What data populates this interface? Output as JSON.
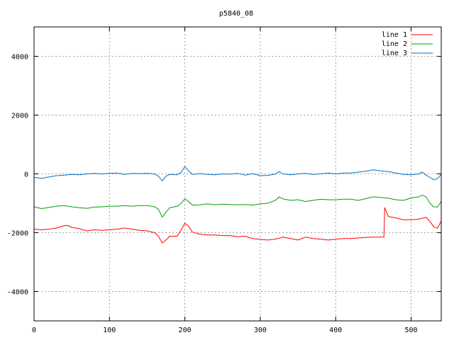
{
  "chart_data": {
    "type": "line",
    "title": "p5840_08",
    "xlabel": "",
    "ylabel": "",
    "xlim": [
      0,
      540
    ],
    "ylim": [
      -5000,
      5000
    ],
    "x_ticks": [
      0,
      100,
      200,
      300,
      400,
      500
    ],
    "y_ticks": [
      -4000,
      -2000,
      0,
      2000,
      4000
    ],
    "grid": true,
    "legend_position": "top-right",
    "series": [
      {
        "name": "line 1",
        "color": "#ff0000",
        "points": [
          [
            0,
            -1880
          ],
          [
            10,
            -1900
          ],
          [
            20,
            -1880
          ],
          [
            30,
            -1840
          ],
          [
            40,
            -1760
          ],
          [
            45,
            -1760
          ],
          [
            50,
            -1820
          ],
          [
            60,
            -1860
          ],
          [
            70,
            -1940
          ],
          [
            80,
            -1900
          ],
          [
            90,
            -1920
          ],
          [
            100,
            -1900
          ],
          [
            110,
            -1880
          ],
          [
            120,
            -1840
          ],
          [
            130,
            -1880
          ],
          [
            140,
            -1920
          ],
          [
            150,
            -1940
          ],
          [
            160,
            -2000
          ],
          [
            165,
            -2120
          ],
          [
            170,
            -2350
          ],
          [
            175,
            -2250
          ],
          [
            180,
            -2120
          ],
          [
            190,
            -2120
          ],
          [
            195,
            -1900
          ],
          [
            200,
            -1680
          ],
          [
            205,
            -1780
          ],
          [
            210,
            -1980
          ],
          [
            220,
            -2050
          ],
          [
            230,
            -2080
          ],
          [
            240,
            -2080
          ],
          [
            250,
            -2100
          ],
          [
            260,
            -2100
          ],
          [
            270,
            -2140
          ],
          [
            280,
            -2120
          ],
          [
            290,
            -2200
          ],
          [
            300,
            -2230
          ],
          [
            310,
            -2250
          ],
          [
            320,
            -2220
          ],
          [
            330,
            -2150
          ],
          [
            340,
            -2200
          ],
          [
            350,
            -2250
          ],
          [
            360,
            -2150
          ],
          [
            370,
            -2200
          ],
          [
            380,
            -2220
          ],
          [
            390,
            -2250
          ],
          [
            400,
            -2220
          ],
          [
            410,
            -2200
          ],
          [
            420,
            -2200
          ],
          [
            430,
            -2180
          ],
          [
            440,
            -2160
          ],
          [
            450,
            -2150
          ],
          [
            460,
            -2150
          ],
          [
            464,
            -2150
          ],
          [
            465,
            -1150
          ],
          [
            470,
            -1450
          ],
          [
            480,
            -1500
          ],
          [
            490,
            -1560
          ],
          [
            500,
            -1560
          ],
          [
            510,
            -1540
          ],
          [
            520,
            -1480
          ],
          [
            525,
            -1620
          ],
          [
            530,
            -1800
          ],
          [
            535,
            -1850
          ],
          [
            540,
            -1600
          ]
        ]
      },
      {
        "name": "line 2",
        "color": "#00a000",
        "points": [
          [
            0,
            -1120
          ],
          [
            10,
            -1180
          ],
          [
            20,
            -1140
          ],
          [
            30,
            -1100
          ],
          [
            40,
            -1080
          ],
          [
            50,
            -1120
          ],
          [
            60,
            -1150
          ],
          [
            70,
            -1170
          ],
          [
            80,
            -1130
          ],
          [
            90,
            -1120
          ],
          [
            100,
            -1100
          ],
          [
            110,
            -1100
          ],
          [
            120,
            -1080
          ],
          [
            130,
            -1100
          ],
          [
            140,
            -1080
          ],
          [
            150,
            -1080
          ],
          [
            160,
            -1120
          ],
          [
            165,
            -1200
          ],
          [
            170,
            -1470
          ],
          [
            175,
            -1300
          ],
          [
            180,
            -1150
          ],
          [
            190,
            -1100
          ],
          [
            195,
            -1000
          ],
          [
            200,
            -850
          ],
          [
            205,
            -940
          ],
          [
            210,
            -1060
          ],
          [
            220,
            -1050
          ],
          [
            230,
            -1020
          ],
          [
            240,
            -1050
          ],
          [
            250,
            -1030
          ],
          [
            260,
            -1040
          ],
          [
            270,
            -1050
          ],
          [
            280,
            -1040
          ],
          [
            290,
            -1060
          ],
          [
            300,
            -1020
          ],
          [
            310,
            -1000
          ],
          [
            320,
            -900
          ],
          [
            325,
            -780
          ],
          [
            330,
            -850
          ],
          [
            340,
            -900
          ],
          [
            350,
            -880
          ],
          [
            360,
            -940
          ],
          [
            370,
            -900
          ],
          [
            380,
            -860
          ],
          [
            390,
            -880
          ],
          [
            400,
            -880
          ],
          [
            410,
            -860
          ],
          [
            420,
            -860
          ],
          [
            430,
            -900
          ],
          [
            440,
            -840
          ],
          [
            450,
            -780
          ],
          [
            460,
            -800
          ],
          [
            470,
            -830
          ],
          [
            480,
            -880
          ],
          [
            490,
            -900
          ],
          [
            500,
            -820
          ],
          [
            510,
            -780
          ],
          [
            515,
            -720
          ],
          [
            520,
            -780
          ],
          [
            525,
            -1000
          ],
          [
            530,
            -1120
          ],
          [
            535,
            -1130
          ],
          [
            540,
            -930
          ]
        ]
      },
      {
        "name": "line 3",
        "color": "#0070c0",
        "points": [
          [
            0,
            -120
          ],
          [
            10,
            -150
          ],
          [
            20,
            -100
          ],
          [
            30,
            -60
          ],
          [
            40,
            -40
          ],
          [
            50,
            -20
          ],
          [
            60,
            -30
          ],
          [
            70,
            0
          ],
          [
            80,
            20
          ],
          [
            90,
            0
          ],
          [
            100,
            20
          ],
          [
            110,
            30
          ],
          [
            120,
            -20
          ],
          [
            130,
            20
          ],
          [
            140,
            10
          ],
          [
            150,
            20
          ],
          [
            160,
            0
          ],
          [
            165,
            -80
          ],
          [
            170,
            -240
          ],
          [
            175,
            -80
          ],
          [
            180,
            -20
          ],
          [
            190,
            -30
          ],
          [
            195,
            50
          ],
          [
            200,
            250
          ],
          [
            205,
            100
          ],
          [
            210,
            -20
          ],
          [
            220,
            10
          ],
          [
            230,
            -20
          ],
          [
            240,
            -30
          ],
          [
            250,
            0
          ],
          [
            260,
            -10
          ],
          [
            270,
            20
          ],
          [
            280,
            -40
          ],
          [
            290,
            10
          ],
          [
            300,
            -60
          ],
          [
            310,
            -50
          ],
          [
            320,
            -10
          ],
          [
            325,
            80
          ],
          [
            330,
            0
          ],
          [
            340,
            -30
          ],
          [
            350,
            0
          ],
          [
            360,
            20
          ],
          [
            370,
            -20
          ],
          [
            380,
            0
          ],
          [
            390,
            30
          ],
          [
            400,
            0
          ],
          [
            410,
            30
          ],
          [
            420,
            30
          ],
          [
            430,
            60
          ],
          [
            440,
            90
          ],
          [
            450,
            140
          ],
          [
            460,
            100
          ],
          [
            470,
            80
          ],
          [
            480,
            30
          ],
          [
            490,
            -20
          ],
          [
            500,
            -30
          ],
          [
            510,
            0
          ],
          [
            515,
            60
          ],
          [
            520,
            -40
          ],
          [
            525,
            -120
          ],
          [
            530,
            -200
          ],
          [
            535,
            -160
          ],
          [
            540,
            -20
          ]
        ]
      }
    ]
  }
}
